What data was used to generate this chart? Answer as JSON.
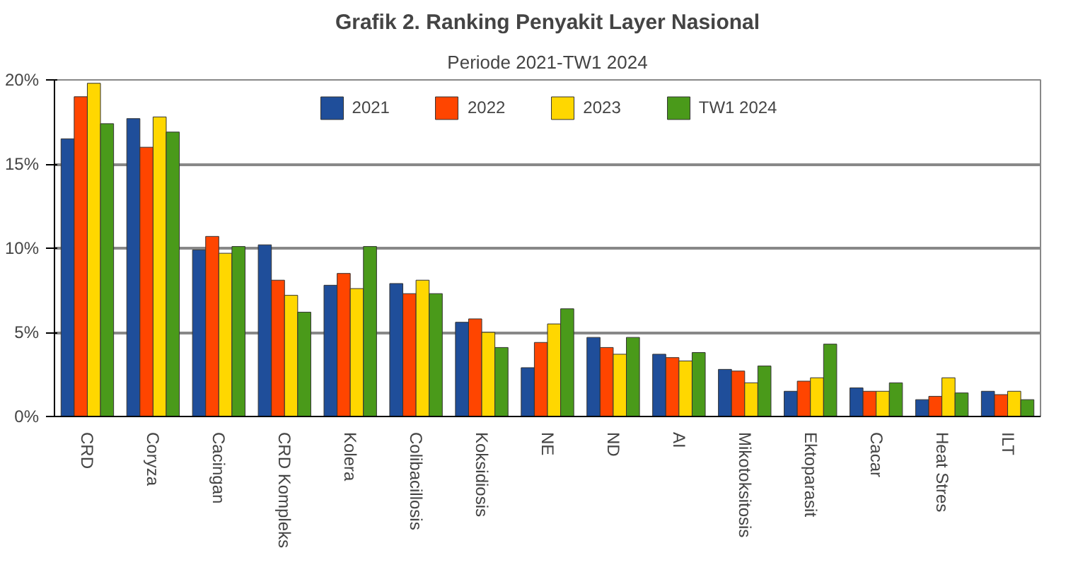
{
  "chart_data": {
    "type": "bar",
    "title": "Grafik 2. Ranking Penyakit Layer Nasional",
    "subtitle": "Periode 2021-TW1 2024",
    "categories": [
      "CRD",
      "Coryza",
      "Cacingan",
      "CRD Kompleks",
      "Kolera",
      "Colibacillosis",
      "Koksidiosis",
      "NE",
      "ND",
      "AI",
      "Mikotoksitosis",
      "Ektoparasit",
      "Cacar",
      "Heat Stres",
      "ILT"
    ],
    "series": [
      {
        "name": "2021",
        "color": "#1f4e9a",
        "values": [
          16.5,
          17.7,
          9.9,
          10.2,
          7.8,
          7.9,
          5.6,
          2.9,
          4.7,
          3.7,
          2.8,
          1.5,
          1.7,
          1.0,
          1.5
        ]
      },
      {
        "name": "2022",
        "color": "#ff4500",
        "values": [
          19.0,
          16.0,
          10.7,
          8.1,
          8.5,
          7.3,
          5.8,
          4.4,
          4.1,
          3.5,
          2.7,
          2.1,
          1.5,
          1.2,
          1.3
        ]
      },
      {
        "name": "2023",
        "color": "#ffd700",
        "values": [
          19.8,
          17.8,
          9.7,
          7.2,
          7.6,
          8.1,
          5.0,
          5.5,
          3.7,
          3.3,
          2.0,
          2.3,
          1.5,
          2.3,
          1.5
        ]
      },
      {
        "name": "TW1 2024",
        "color": "#4a9a1a",
        "values": [
          17.4,
          16.9,
          10.1,
          6.2,
          10.1,
          7.3,
          4.1,
          6.4,
          4.7,
          3.8,
          3.0,
          4.3,
          2.0,
          1.4,
          1.0
        ]
      }
    ],
    "ylim": [
      0,
      20
    ],
    "yticks": [
      {
        "value": 0,
        "label": "0%"
      },
      {
        "value": 5,
        "label": "5%"
      },
      {
        "value": 10,
        "label": "10%"
      },
      {
        "value": 15,
        "label": "15%"
      },
      {
        "value": 20,
        "label": "20%"
      }
    ],
    "grid": "y",
    "legend": "top"
  }
}
